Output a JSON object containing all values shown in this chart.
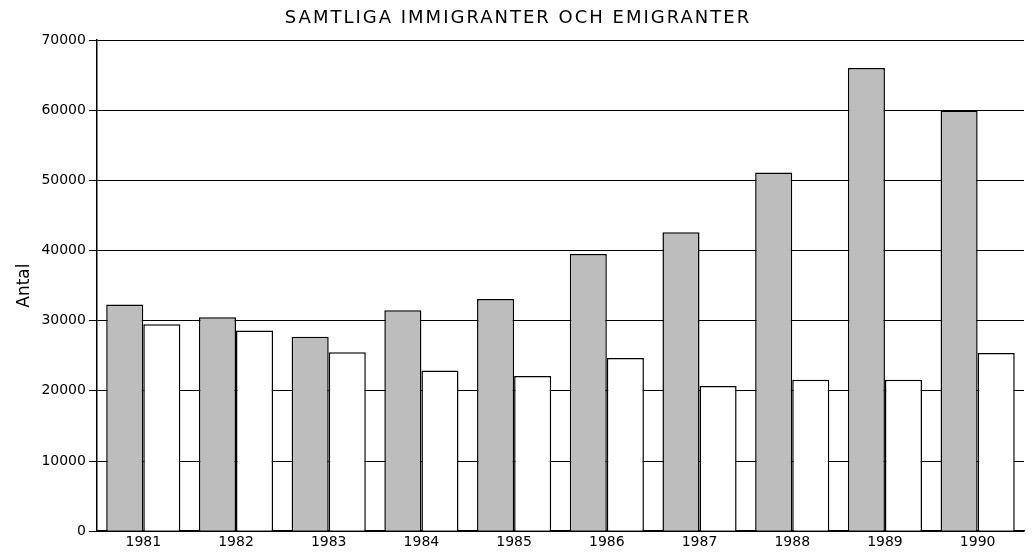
{
  "chart_data": {
    "type": "bar",
    "title": "SAMTLIGA IMMIGRANTER OCH EMIGRANTER",
    "ylabel": "Antal",
    "categories": [
      "1981",
      "1982",
      "1983",
      "1984",
      "1985",
      "1986",
      "1987",
      "1988",
      "1989",
      "1990"
    ],
    "series": [
      {
        "color": "#bdbdbd",
        "values": [
          32300,
          30500,
          27700,
          31500,
          33100,
          39500,
          42600,
          51100,
          66000,
          59900
        ]
      },
      {
        "color": "#ffffff",
        "values": [
          29500,
          28600,
          25500,
          22900,
          22100,
          24700,
          20700,
          21600,
          21600,
          25400
        ]
      }
    ],
    "ylim": [
      0,
      70000
    ],
    "yticks": [
      0,
      10000,
      20000,
      30000,
      40000,
      50000,
      60000,
      70000
    ],
    "grid": "y",
    "legend": false
  }
}
